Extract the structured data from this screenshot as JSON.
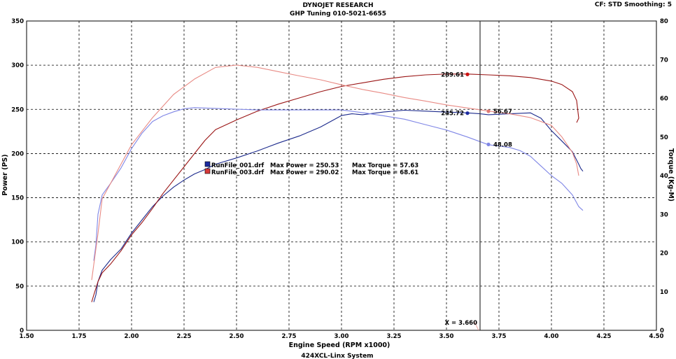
{
  "header": {
    "title": "DYNOJET RESEARCH",
    "subtitle": "GHP Tuning 010-5021-6655",
    "settings": "CF: STD  Smoothing: 5",
    "footer": "424XCL-Linx System"
  },
  "colors": {
    "run1_power": "#1c2a8c",
    "run1_torque": "#7f86e6",
    "run3_power": "#9a1414",
    "run3_torque": "#e88a84",
    "background": "#ffffff",
    "grid": "#000000"
  },
  "chart_data": {
    "type": "line",
    "xlabel": "Engine Speed (RPM x1000)",
    "ylabel_left": "Power (PS)",
    "ylabel_right": "Torque (Kg-M)",
    "xlim": [
      1.5,
      4.5
    ],
    "ylim_left": [
      0,
      350
    ],
    "ylim_right": [
      0,
      80
    ],
    "x_ticks": [
      "1.50",
      "1.75",
      "2.00",
      "2.25",
      "2.50",
      "2.75",
      "3.00",
      "3.25",
      "3.50",
      "3.75",
      "4.00",
      "4.25",
      "4.50"
    ],
    "y_left_ticks": [
      "0",
      "50",
      "100",
      "150",
      "200",
      "250",
      "300",
      "350"
    ],
    "y_right_ticks": [
      "0",
      "10",
      "20",
      "30",
      "40",
      "50",
      "60",
      "70",
      "80"
    ],
    "grid": true,
    "legend": [
      {
        "label": "RunFile_001.drf",
        "max_power_text": "Max Power = 250.53",
        "max_torque_text": "Max Torque = 57.63",
        "color": "#1c2a8c"
      },
      {
        "label": "RunFile_003.drf",
        "max_power_text": "Max Power = 290.02",
        "max_torque_text": "Max Torque = 68.61",
        "color": "#d83a3a"
      }
    ],
    "cursor": {
      "x": 3.66,
      "label": "X = 3.660"
    },
    "cursor_values": [
      {
        "label": "289.61",
        "x": 3.6,
        "y": 289.61,
        "axis": "left",
        "color": "#cc1111",
        "side": "left"
      },
      {
        "label": "245.72",
        "x": 3.6,
        "y": 245.72,
        "axis": "left",
        "color": "#1b2aa0",
        "side": "left"
      },
      {
        "label": "56.67",
        "x": 3.7,
        "y": 56.67,
        "axis": "right",
        "color": "#e07a74",
        "side": "right"
      },
      {
        "label": "48.08",
        "x": 3.7,
        "y": 48.08,
        "axis": "right",
        "color": "#7f86e6",
        "side": "right"
      }
    ],
    "series": [
      {
        "name": "RunFile_001.drf Power",
        "axis": "left",
        "color": "#1c2a8c",
        "points": [
          [
            1.82,
            32
          ],
          [
            1.83,
            40
          ],
          [
            1.84,
            55
          ],
          [
            1.86,
            68
          ],
          [
            1.9,
            80
          ],
          [
            1.95,
            92
          ],
          [
            2.0,
            110
          ],
          [
            2.05,
            125
          ],
          [
            2.1,
            140
          ],
          [
            2.15,
            152
          ],
          [
            2.2,
            162
          ],
          [
            2.25,
            170
          ],
          [
            2.3,
            177
          ],
          [
            2.35,
            182
          ],
          [
            2.4,
            188
          ],
          [
            2.5,
            195
          ],
          [
            2.6,
            203
          ],
          [
            2.7,
            212
          ],
          [
            2.8,
            220
          ],
          [
            2.9,
            230
          ],
          [
            3.0,
            243
          ],
          [
            3.05,
            245
          ],
          [
            3.1,
            244
          ],
          [
            3.2,
            247
          ],
          [
            3.3,
            249
          ],
          [
            3.4,
            248
          ],
          [
            3.5,
            247
          ],
          [
            3.6,
            246
          ],
          [
            3.66,
            245
          ],
          [
            3.7,
            244
          ],
          [
            3.8,
            245
          ],
          [
            3.9,
            246
          ],
          [
            3.95,
            240
          ],
          [
            4.0,
            226
          ],
          [
            4.05,
            214
          ],
          [
            4.1,
            202
          ],
          [
            4.13,
            188
          ],
          [
            4.14,
            183
          ],
          [
            4.15,
            180
          ]
        ]
      },
      {
        "name": "RunFile_003.drf Power",
        "axis": "left",
        "color": "#9a1414",
        "points": [
          [
            1.81,
            32
          ],
          [
            1.82,
            40
          ],
          [
            1.84,
            55
          ],
          [
            1.86,
            65
          ],
          [
            1.9,
            75
          ],
          [
            1.95,
            90
          ],
          [
            2.0,
            108
          ],
          [
            2.05,
            122
          ],
          [
            2.1,
            138
          ],
          [
            2.15,
            155
          ],
          [
            2.2,
            170
          ],
          [
            2.25,
            185
          ],
          [
            2.3,
            200
          ],
          [
            2.35,
            215
          ],
          [
            2.4,
            227
          ],
          [
            2.5,
            238
          ],
          [
            2.6,
            248
          ],
          [
            2.7,
            256
          ],
          [
            2.8,
            263
          ],
          [
            2.9,
            270
          ],
          [
            3.0,
            276
          ],
          [
            3.1,
            280
          ],
          [
            3.2,
            284
          ],
          [
            3.3,
            287
          ],
          [
            3.4,
            289
          ],
          [
            3.5,
            290
          ],
          [
            3.6,
            290
          ],
          [
            3.7,
            289
          ],
          [
            3.8,
            288
          ],
          [
            3.9,
            286
          ],
          [
            4.0,
            282
          ],
          [
            4.05,
            278
          ],
          [
            4.1,
            270
          ],
          [
            4.12,
            260
          ],
          [
            4.13,
            240
          ],
          [
            4.12,
            235
          ]
        ]
      },
      {
        "name": "RunFile_001.drf Torque",
        "axis": "right",
        "color": "#7f86e6",
        "points": [
          [
            1.82,
            18
          ],
          [
            1.83,
            22
          ],
          [
            1.84,
            30
          ],
          [
            1.86,
            35
          ],
          [
            1.9,
            38
          ],
          [
            1.95,
            42
          ],
          [
            2.0,
            47
          ],
          [
            2.05,
            51
          ],
          [
            2.1,
            54
          ],
          [
            2.15,
            55.5
          ],
          [
            2.2,
            56.5
          ],
          [
            2.25,
            57.3
          ],
          [
            2.3,
            57.6
          ],
          [
            2.4,
            57.4
          ],
          [
            2.5,
            57.2
          ],
          [
            2.6,
            57
          ],
          [
            2.7,
            57
          ],
          [
            2.8,
            57
          ],
          [
            2.9,
            57
          ],
          [
            3.0,
            57
          ],
          [
            3.1,
            56.3
          ],
          [
            3.2,
            55.5
          ],
          [
            3.3,
            54.6
          ],
          [
            3.4,
            53.2
          ],
          [
            3.5,
            51.8
          ],
          [
            3.6,
            50
          ],
          [
            3.7,
            48
          ],
          [
            3.8,
            47.3
          ],
          [
            3.85,
            46.5
          ],
          [
            3.9,
            45
          ],
          [
            3.95,
            42.5
          ],
          [
            4.0,
            40
          ],
          [
            4.05,
            38
          ],
          [
            4.1,
            35
          ],
          [
            4.13,
            32
          ],
          [
            4.15,
            31
          ]
        ]
      },
      {
        "name": "RunFile_003.drf Torque",
        "axis": "right",
        "color": "#e88a84",
        "points": [
          [
            1.81,
            13
          ],
          [
            1.82,
            17
          ],
          [
            1.84,
            25
          ],
          [
            1.86,
            34
          ],
          [
            1.9,
            38
          ],
          [
            1.95,
            43
          ],
          [
            2.0,
            48
          ],
          [
            2.1,
            55
          ],
          [
            2.2,
            61
          ],
          [
            2.3,
            65
          ],
          [
            2.4,
            68
          ],
          [
            2.5,
            68.6
          ],
          [
            2.6,
            68
          ],
          [
            2.7,
            66.9
          ],
          [
            2.8,
            65.8
          ],
          [
            2.9,
            64.8
          ],
          [
            3.0,
            63.5
          ],
          [
            3.1,
            62.3
          ],
          [
            3.2,
            61.3
          ],
          [
            3.3,
            60.2
          ],
          [
            3.4,
            59.3
          ],
          [
            3.5,
            58.3
          ],
          [
            3.6,
            57.5
          ],
          [
            3.7,
            56.7
          ],
          [
            3.8,
            56
          ],
          [
            3.9,
            55
          ],
          [
            4.0,
            53
          ],
          [
            4.05,
            50
          ],
          [
            4.1,
            46
          ],
          [
            4.12,
            43
          ],
          [
            4.13,
            40
          ]
        ]
      }
    ]
  }
}
